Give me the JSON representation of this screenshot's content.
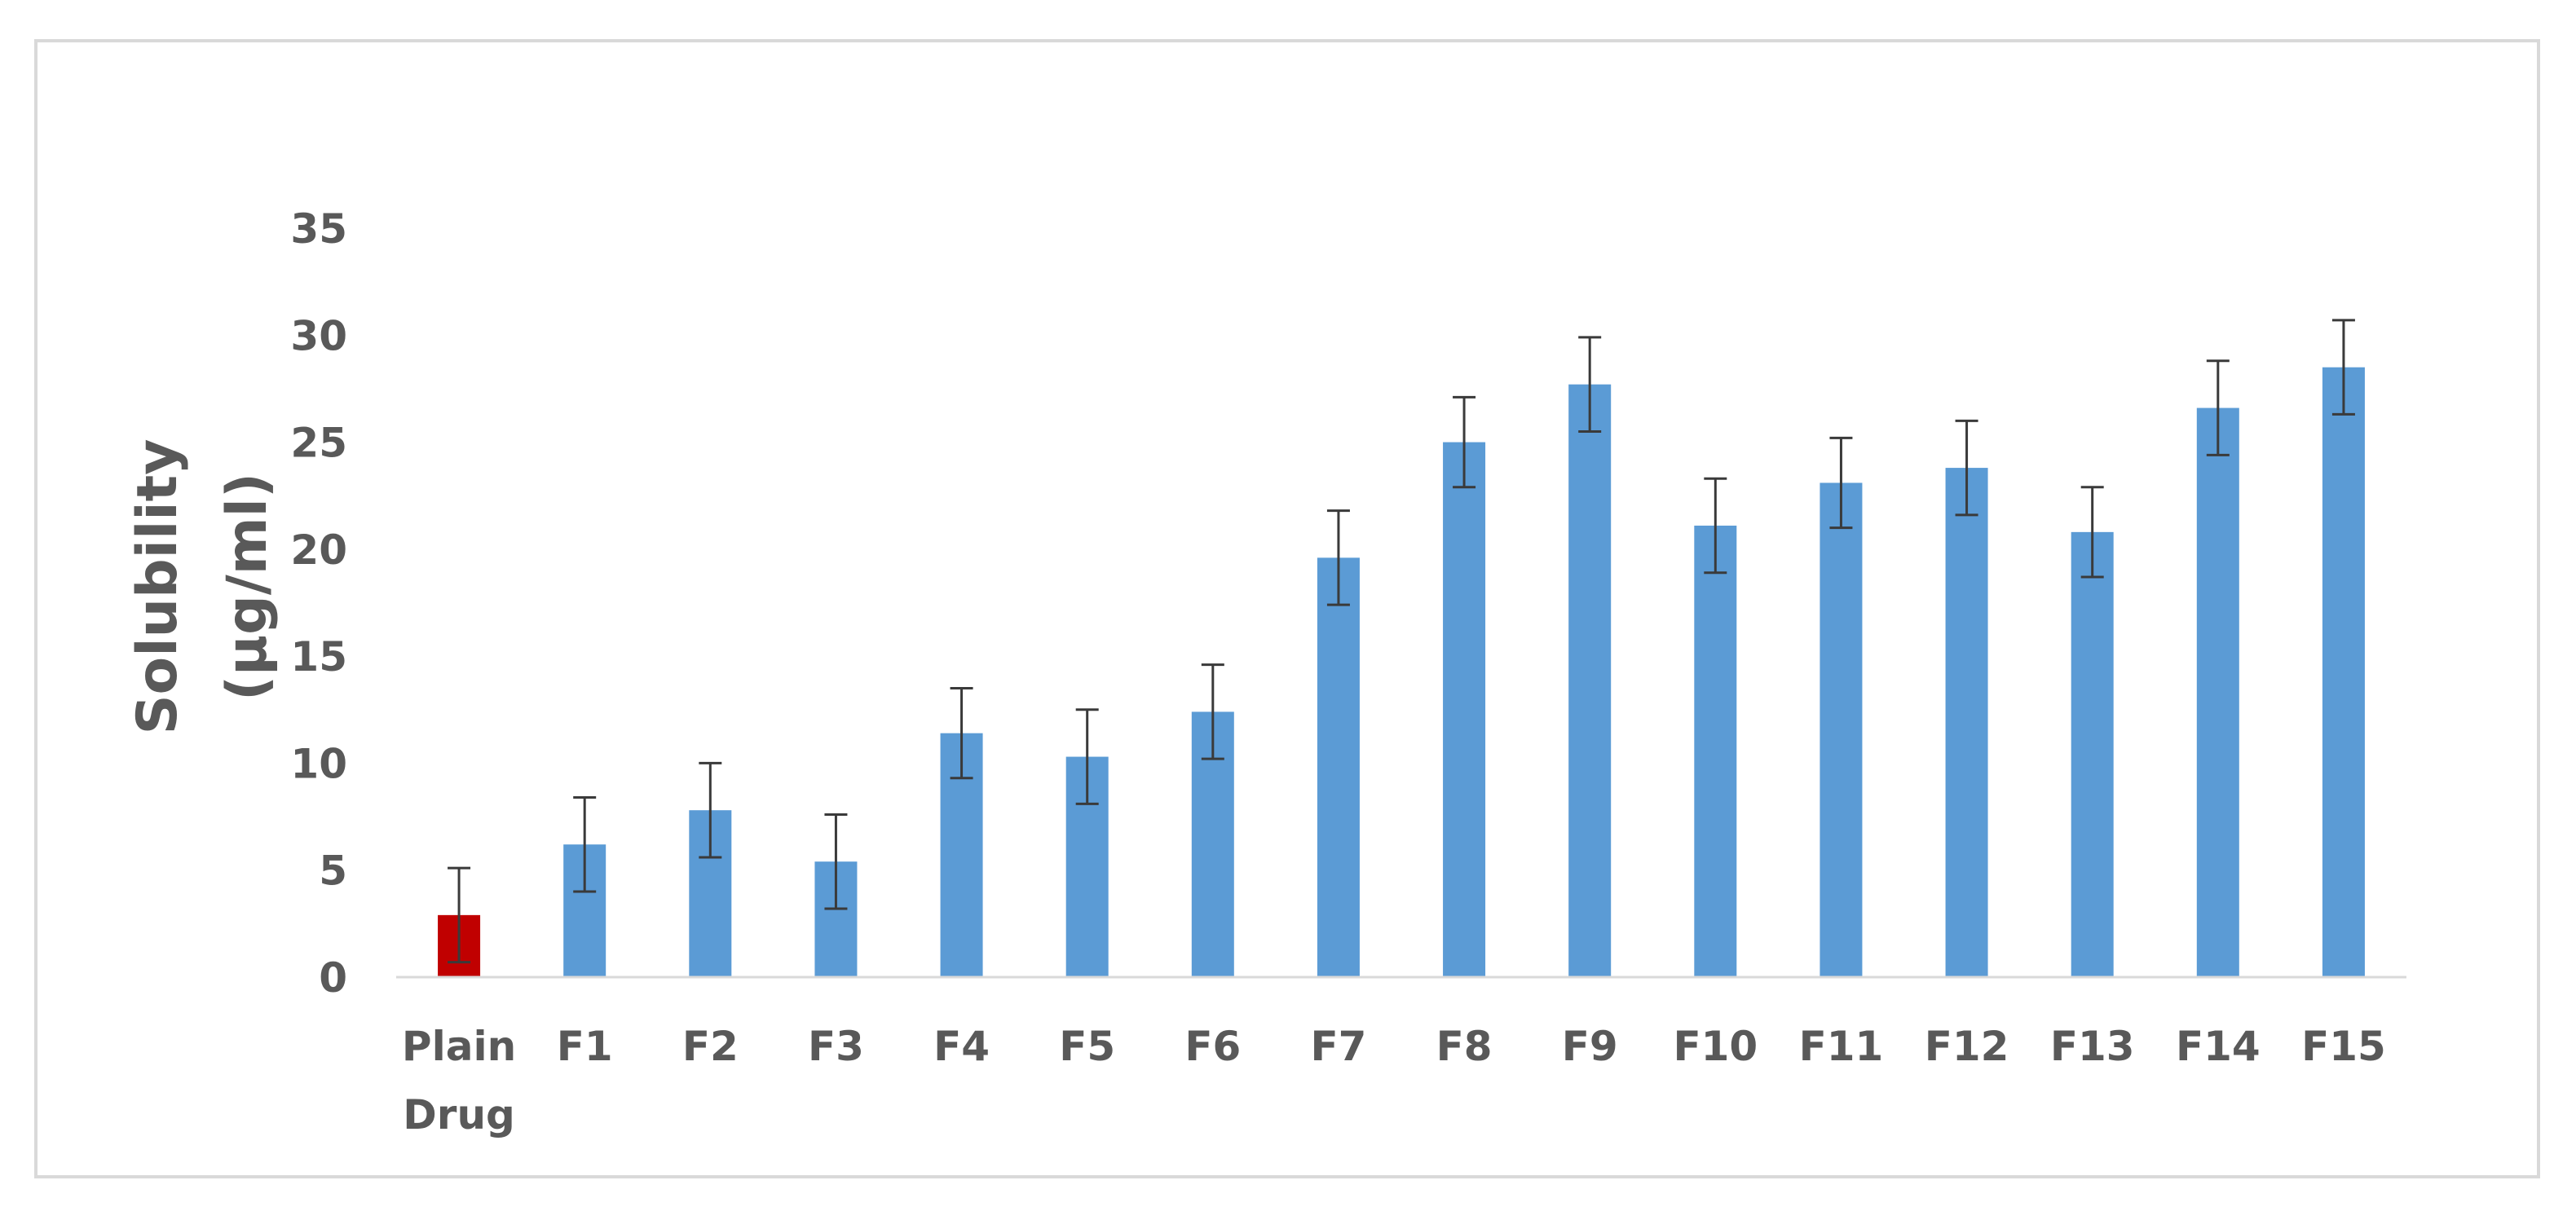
{
  "chart_data": {
    "type": "bar",
    "title": "",
    "xlabel": "",
    "ylabel_lines": [
      "Solubility",
      "(µg/ml)"
    ],
    "ylim": [
      0,
      35
    ],
    "yticks": [
      0,
      5,
      10,
      15,
      20,
      25,
      30,
      35
    ],
    "grid": false,
    "legend": "none",
    "categories": [
      [
        "Plain",
        "Drug"
      ],
      [
        "F1"
      ],
      [
        "F2"
      ],
      [
        "F3"
      ],
      [
        "F4"
      ],
      [
        "F5"
      ],
      [
        "F6"
      ],
      [
        "F7"
      ],
      [
        "F8"
      ],
      [
        "F9"
      ],
      [
        "F10"
      ],
      [
        "F11"
      ],
      [
        "F12"
      ],
      [
        "F13"
      ],
      [
        "F14"
      ],
      [
        "F15"
      ]
    ],
    "values": [
      2.9,
      6.2,
      7.8,
      5.4,
      11.4,
      10.3,
      12.4,
      19.6,
      25.0,
      27.7,
      21.1,
      23.1,
      23.8,
      20.8,
      26.6,
      28.5
    ],
    "error": [
      2.2,
      2.2,
      2.2,
      2.2,
      2.1,
      2.2,
      2.2,
      2.2,
      2.1,
      2.2,
      2.2,
      2.1,
      2.2,
      2.1,
      2.2,
      2.2
    ],
    "bar_colors": [
      "#c00000",
      "#5b9bd5",
      "#5b9bd5",
      "#5b9bd5",
      "#5b9bd5",
      "#5b9bd5",
      "#5b9bd5",
      "#5b9bd5",
      "#5b9bd5",
      "#5b9bd5",
      "#5b9bd5",
      "#5b9bd5",
      "#5b9bd5",
      "#5b9bd5",
      "#5b9bd5",
      "#5b9bd5"
    ],
    "error_bar_color": "#3a3a3a",
    "axis_color": "#d9d9d9",
    "text_color": "#595959"
  }
}
